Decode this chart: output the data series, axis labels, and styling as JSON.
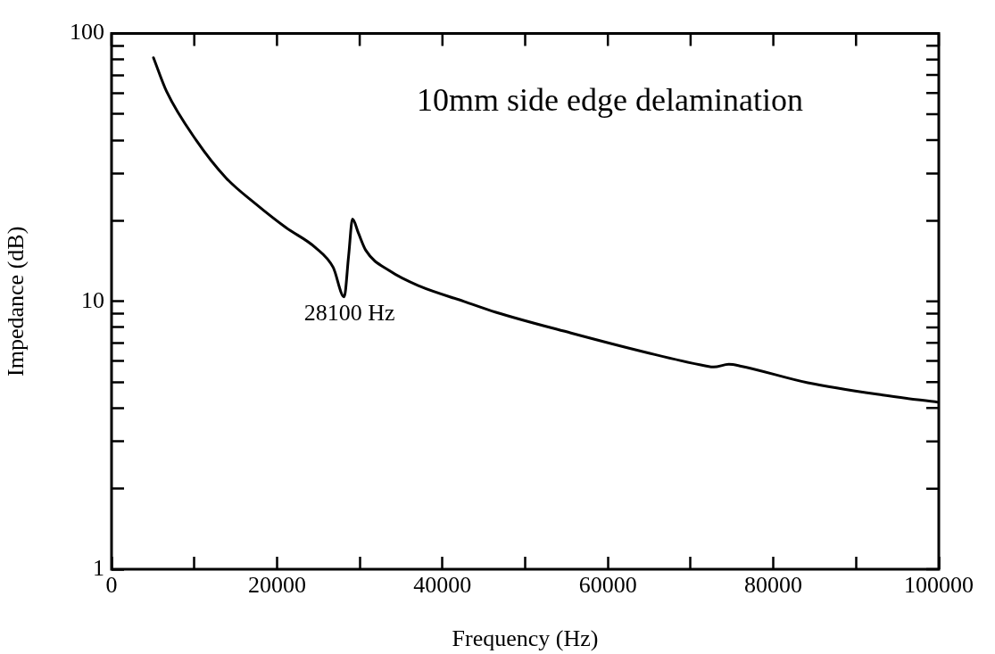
{
  "chart_data": {
    "type": "line",
    "title": "10mm side edge delamination",
    "xlabel": "Frequency (Hz)",
    "ylabel": "Impedance (dB)",
    "x": [
      5070,
      6650,
      10250,
      13840,
      17440,
      21040,
      24630,
      26790,
      28120,
      28660,
      29130,
      29840,
      30740,
      33620,
      37220,
      42610,
      46460,
      55540,
      64620,
      71890,
      72800,
      74620,
      75970,
      84170,
      93220,
      100000
    ],
    "series": [
      {
        "color": "#000000",
        "values": [
          81.2,
          60.8,
          39.9,
          28.9,
          23.1,
          18.9,
          15.9,
          13.4,
          10.4,
          14.8,
          20.3,
          18.0,
          15.5,
          13.0,
          11.4,
          10.0,
          9.11,
          7.62,
          6.45,
          5.74,
          5.69,
          5.82,
          5.74,
          4.97,
          4.47,
          4.2
        ]
      }
    ],
    "xlim": [
      0,
      100000
    ],
    "xticks": [
      0,
      {
        "value": 10000,
        "label": null
      },
      20000,
      {
        "value": 30000,
        "label": null
      },
      40000,
      {
        "value": 50000,
        "label": null
      },
      60000,
      {
        "value": 70000,
        "label": null
      },
      80000,
      {
        "value": 90000,
        "label": null
      },
      100000
    ],
    "ylim": [
      1,
      100
    ],
    "yticks": [
      1,
      {
        "value": 2,
        "label": null
      },
      {
        "value": 3,
        "label": null
      },
      {
        "value": 4,
        "label": null
      },
      {
        "value": 5,
        "label": null
      },
      {
        "value": 6,
        "label": null
      },
      {
        "value": 7,
        "label": null
      },
      {
        "value": 8,
        "label": null
      },
      {
        "value": 9,
        "label": null
      },
      10,
      {
        "value": 20,
        "label": null
      },
      {
        "value": 30,
        "label": null
      },
      {
        "value": 40,
        "label": null
      },
      {
        "value": 50,
        "label": null
      },
      {
        "value": 60,
        "label": null
      },
      {
        "value": 70,
        "label": null
      },
      {
        "value": 80,
        "label": null
      },
      {
        "value": 90,
        "label": null
      },
      100
    ],
    "log": "y",
    "grid": false,
    "legend": false,
    "marker": "none",
    "line_style": "solid",
    "annotations": [
      {
        "text": "28100 Hz",
        "x": 28120,
        "y": 10.4
      }
    ]
  }
}
